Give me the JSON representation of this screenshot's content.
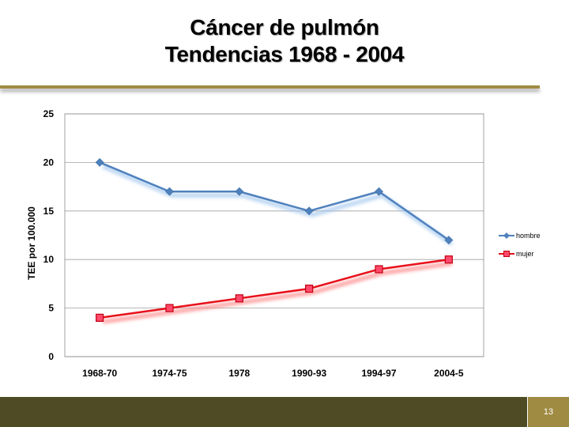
{
  "title_line1": "Cáncer de pulmón",
  "title_line2": "Tendencias 1968 - 2004",
  "page_number": "13",
  "colors": {
    "accent_gold": "#a08b43",
    "footer_dark": "#4e4b25",
    "hombre": "#4f81bd",
    "mujer": "#e8101a"
  },
  "chart_data": {
    "type": "line",
    "categories": [
      "1968-70",
      "1974-75",
      "1978",
      "1990-93",
      "1994-97",
      "2004-5"
    ],
    "series": [
      {
        "name": "hombre",
        "values": [
          20,
          17,
          17,
          15,
          17,
          12
        ],
        "color": "#4f81bd",
        "marker": "diamond"
      },
      {
        "name": "mujer",
        "values": [
          4,
          5,
          6,
          7,
          9,
          10
        ],
        "color": "#e8101a",
        "marker": "square"
      }
    ],
    "ylabel": "TEE por 100.000",
    "xlabel": "",
    "ylim": [
      0,
      25
    ],
    "yticks": [
      0,
      5,
      10,
      15,
      20,
      25
    ],
    "grid": true,
    "legend": "right"
  }
}
